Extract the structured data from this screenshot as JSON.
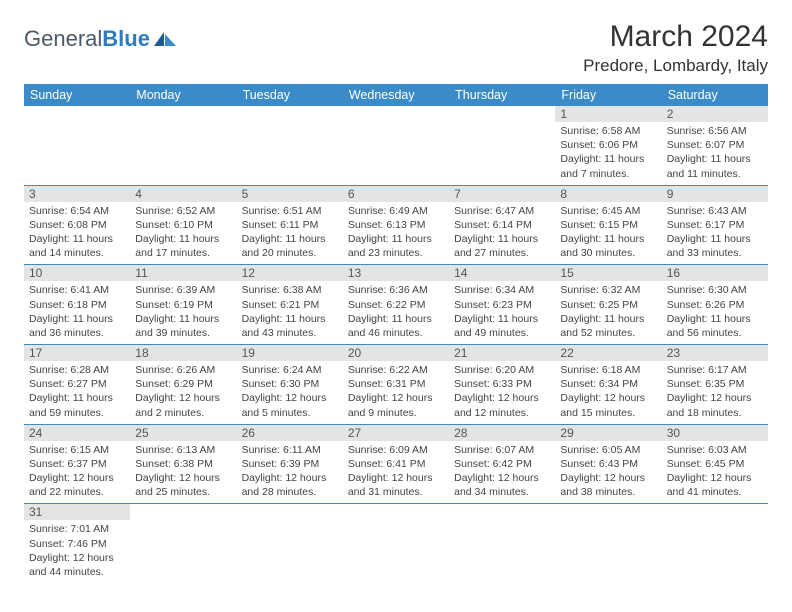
{
  "logo": {
    "general": "General",
    "blue": "Blue"
  },
  "title": "March 2024",
  "location": "Predore, Lombardy, Italy",
  "header_bg": "#3b8bc9",
  "header_fg": "#ffffff",
  "daynum_bg": "#e4e4e4",
  "row_border": "#3b8bc9",
  "weekdays": [
    "Sunday",
    "Monday",
    "Tuesday",
    "Wednesday",
    "Thursday",
    "Friday",
    "Saturday"
  ],
  "weeks": [
    [
      null,
      null,
      null,
      null,
      null,
      {
        "n": "1",
        "sr": "Sunrise: 6:58 AM",
        "ss": "Sunset: 6:06 PM",
        "dl": "Daylight: 11 hours and 7 minutes."
      },
      {
        "n": "2",
        "sr": "Sunrise: 6:56 AM",
        "ss": "Sunset: 6:07 PM",
        "dl": "Daylight: 11 hours and 11 minutes."
      }
    ],
    [
      {
        "n": "3",
        "sr": "Sunrise: 6:54 AM",
        "ss": "Sunset: 6:08 PM",
        "dl": "Daylight: 11 hours and 14 minutes."
      },
      {
        "n": "4",
        "sr": "Sunrise: 6:52 AM",
        "ss": "Sunset: 6:10 PM",
        "dl": "Daylight: 11 hours and 17 minutes."
      },
      {
        "n": "5",
        "sr": "Sunrise: 6:51 AM",
        "ss": "Sunset: 6:11 PM",
        "dl": "Daylight: 11 hours and 20 minutes."
      },
      {
        "n": "6",
        "sr": "Sunrise: 6:49 AM",
        "ss": "Sunset: 6:13 PM",
        "dl": "Daylight: 11 hours and 23 minutes."
      },
      {
        "n": "7",
        "sr": "Sunrise: 6:47 AM",
        "ss": "Sunset: 6:14 PM",
        "dl": "Daylight: 11 hours and 27 minutes."
      },
      {
        "n": "8",
        "sr": "Sunrise: 6:45 AM",
        "ss": "Sunset: 6:15 PM",
        "dl": "Daylight: 11 hours and 30 minutes."
      },
      {
        "n": "9",
        "sr": "Sunrise: 6:43 AM",
        "ss": "Sunset: 6:17 PM",
        "dl": "Daylight: 11 hours and 33 minutes."
      }
    ],
    [
      {
        "n": "10",
        "sr": "Sunrise: 6:41 AM",
        "ss": "Sunset: 6:18 PM",
        "dl": "Daylight: 11 hours and 36 minutes."
      },
      {
        "n": "11",
        "sr": "Sunrise: 6:39 AM",
        "ss": "Sunset: 6:19 PM",
        "dl": "Daylight: 11 hours and 39 minutes."
      },
      {
        "n": "12",
        "sr": "Sunrise: 6:38 AM",
        "ss": "Sunset: 6:21 PM",
        "dl": "Daylight: 11 hours and 43 minutes."
      },
      {
        "n": "13",
        "sr": "Sunrise: 6:36 AM",
        "ss": "Sunset: 6:22 PM",
        "dl": "Daylight: 11 hours and 46 minutes."
      },
      {
        "n": "14",
        "sr": "Sunrise: 6:34 AM",
        "ss": "Sunset: 6:23 PM",
        "dl": "Daylight: 11 hours and 49 minutes."
      },
      {
        "n": "15",
        "sr": "Sunrise: 6:32 AM",
        "ss": "Sunset: 6:25 PM",
        "dl": "Daylight: 11 hours and 52 minutes."
      },
      {
        "n": "16",
        "sr": "Sunrise: 6:30 AM",
        "ss": "Sunset: 6:26 PM",
        "dl": "Daylight: 11 hours and 56 minutes."
      }
    ],
    [
      {
        "n": "17",
        "sr": "Sunrise: 6:28 AM",
        "ss": "Sunset: 6:27 PM",
        "dl": "Daylight: 11 hours and 59 minutes."
      },
      {
        "n": "18",
        "sr": "Sunrise: 6:26 AM",
        "ss": "Sunset: 6:29 PM",
        "dl": "Daylight: 12 hours and 2 minutes."
      },
      {
        "n": "19",
        "sr": "Sunrise: 6:24 AM",
        "ss": "Sunset: 6:30 PM",
        "dl": "Daylight: 12 hours and 5 minutes."
      },
      {
        "n": "20",
        "sr": "Sunrise: 6:22 AM",
        "ss": "Sunset: 6:31 PM",
        "dl": "Daylight: 12 hours and 9 minutes."
      },
      {
        "n": "21",
        "sr": "Sunrise: 6:20 AM",
        "ss": "Sunset: 6:33 PM",
        "dl": "Daylight: 12 hours and 12 minutes."
      },
      {
        "n": "22",
        "sr": "Sunrise: 6:18 AM",
        "ss": "Sunset: 6:34 PM",
        "dl": "Daylight: 12 hours and 15 minutes."
      },
      {
        "n": "23",
        "sr": "Sunrise: 6:17 AM",
        "ss": "Sunset: 6:35 PM",
        "dl": "Daylight: 12 hours and 18 minutes."
      }
    ],
    [
      {
        "n": "24",
        "sr": "Sunrise: 6:15 AM",
        "ss": "Sunset: 6:37 PM",
        "dl": "Daylight: 12 hours and 22 minutes."
      },
      {
        "n": "25",
        "sr": "Sunrise: 6:13 AM",
        "ss": "Sunset: 6:38 PM",
        "dl": "Daylight: 12 hours and 25 minutes."
      },
      {
        "n": "26",
        "sr": "Sunrise: 6:11 AM",
        "ss": "Sunset: 6:39 PM",
        "dl": "Daylight: 12 hours and 28 minutes."
      },
      {
        "n": "27",
        "sr": "Sunrise: 6:09 AM",
        "ss": "Sunset: 6:41 PM",
        "dl": "Daylight: 12 hours and 31 minutes."
      },
      {
        "n": "28",
        "sr": "Sunrise: 6:07 AM",
        "ss": "Sunset: 6:42 PM",
        "dl": "Daylight: 12 hours and 34 minutes."
      },
      {
        "n": "29",
        "sr": "Sunrise: 6:05 AM",
        "ss": "Sunset: 6:43 PM",
        "dl": "Daylight: 12 hours and 38 minutes."
      },
      {
        "n": "30",
        "sr": "Sunrise: 6:03 AM",
        "ss": "Sunset: 6:45 PM",
        "dl": "Daylight: 12 hours and 41 minutes."
      }
    ],
    [
      {
        "n": "31",
        "sr": "Sunrise: 7:01 AM",
        "ss": "Sunset: 7:46 PM",
        "dl": "Daylight: 12 hours and 44 minutes."
      },
      null,
      null,
      null,
      null,
      null,
      null
    ]
  ]
}
